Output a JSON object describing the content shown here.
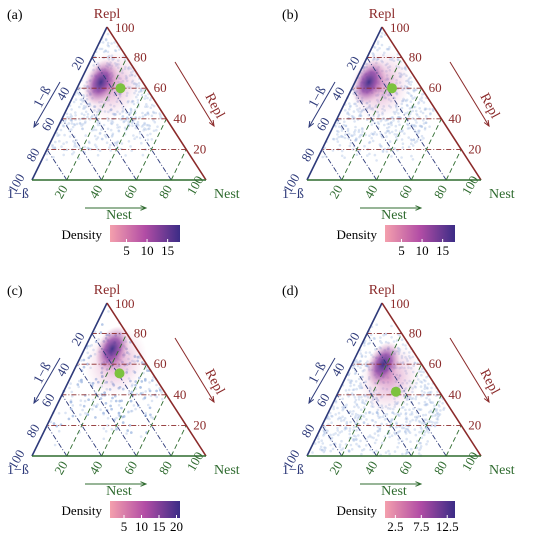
{
  "figure": {
    "panels": [
      {
        "label": "(a)",
        "top_label": "Repl",
        "right_label": "Repl",
        "left_label": "1−ß",
        "left_corner_label": "1−ß",
        "right_corner_label": "Nest",
        "bottom_label": "Nest",
        "apex_tick": "100",
        "right_corner_tick": "100",
        "left_corner_tick": "100",
        "legend_title": "Density",
        "legend_ticks": [
          "5",
          "10",
          "15"
        ],
        "legend_range": [
          1,
          18
        ]
      },
      {
        "label": "(b)",
        "top_label": "Repl",
        "right_label": "Repl",
        "left_label": "1−ß",
        "left_corner_label": "1−ß",
        "right_corner_label": "Nest",
        "bottom_label": "Nest",
        "apex_tick": "100",
        "right_corner_tick": "100",
        "left_corner_tick": "100",
        "legend_title": "Density",
        "legend_ticks": [
          "5",
          "10",
          "15"
        ],
        "legend_range": [
          1,
          18
        ]
      },
      {
        "label": "(c)",
        "top_label": "Repl",
        "right_label": "Repl",
        "left_label": "1−ß",
        "left_corner_label": "1−ß",
        "right_corner_label": "Nest",
        "bottom_label": "Nest",
        "apex_tick": "100",
        "right_corner_tick": "100",
        "left_corner_tick": "100",
        "legend_title": "Density",
        "legend_ticks": [
          "5",
          "10",
          "15",
          "20"
        ],
        "legend_range": [
          1,
          21
        ]
      },
      {
        "label": "(d)",
        "top_label": "Repl",
        "right_label": "Repl",
        "left_label": "1−ß",
        "left_corner_label": "1−ß",
        "right_corner_label": "Nest",
        "bottom_label": "Nest",
        "apex_tick": "100",
        "right_corner_tick": "100",
        "left_corner_tick": "100",
        "legend_title": "Density",
        "legend_ticks": [
          "2.5",
          "7.5",
          "12.5"
        ],
        "legend_range": [
          0.5,
          14
        ]
      }
    ],
    "colors": {
      "repl_axis": "#8b2a2a",
      "beta_axis": "#2e3a7a",
      "nest_axis": "#2f6b2f",
      "point_cloud": "#9ab4e0",
      "density_low": "#f4a0ad",
      "density_mid": "#b24da5",
      "density_high": "#3b2c86",
      "mean_marker": "#7cc23e"
    }
  },
  "chart_data": [
    {
      "type": "ternary-density",
      "panel": "(a)",
      "axes": [
        "Repl",
        "1−ß",
        "Nest"
      ],
      "axis_ticks": [
        20,
        40,
        60,
        80,
        100
      ],
      "axis_range": [
        0,
        100
      ],
      "grid": true,
      "mean_point": {
        "Repl": 60,
        "Nest": 25,
        "1−ß": 15
      },
      "density_peak": {
        "Repl": 64,
        "Nest": 12,
        "1−ß": 24
      },
      "legend": {
        "title": "Density",
        "ticks": [
          5,
          10,
          15
        ],
        "placement": "bottom"
      }
    },
    {
      "type": "ternary-density",
      "panel": "(b)",
      "axes": [
        "Repl",
        "1−ß",
        "Nest"
      ],
      "axis_ticks": [
        20,
        40,
        60,
        80,
        100
      ],
      "axis_range": [
        0,
        100
      ],
      "grid": true,
      "mean_point": {
        "Repl": 60,
        "Nest": 23,
        "1−ß": 17
      },
      "density_peak": {
        "Repl": 64,
        "Nest": 8,
        "1−ß": 28
      },
      "legend": {
        "title": "Density",
        "ticks": [
          5,
          10,
          15
        ],
        "placement": "bottom"
      }
    },
    {
      "type": "ternary-density",
      "panel": "(c)",
      "axes": [
        "Repl",
        "1−ß",
        "Nest"
      ],
      "axis_ticks": [
        20,
        40,
        60,
        80,
        100
      ],
      "axis_range": [
        0,
        100
      ],
      "grid": true,
      "mean_point": {
        "Repl": 54,
        "Nest": 27,
        "1−ß": 19
      },
      "density_peak": {
        "Repl": 70,
        "Nest": 16,
        "1−ß": 14
      },
      "legend": {
        "title": "Density",
        "ticks": [
          5,
          10,
          15,
          20
        ],
        "placement": "bottom"
      }
    },
    {
      "type": "ternary-density",
      "panel": "(d)",
      "axes": [
        "Repl",
        "1−ß",
        "Nest"
      ],
      "axis_ticks": [
        20,
        40,
        60,
        80,
        100
      ],
      "axis_range": [
        0,
        100
      ],
      "grid": true,
      "mean_point": {
        "Repl": 42,
        "Nest": 33,
        "1−ß": 25
      },
      "density_peak": {
        "Repl": 60,
        "Nest": 18,
        "1−ß": 22
      },
      "legend": {
        "title": "Density",
        "ticks": [
          2.5,
          7.5,
          12.5
        ],
        "placement": "bottom"
      }
    }
  ]
}
